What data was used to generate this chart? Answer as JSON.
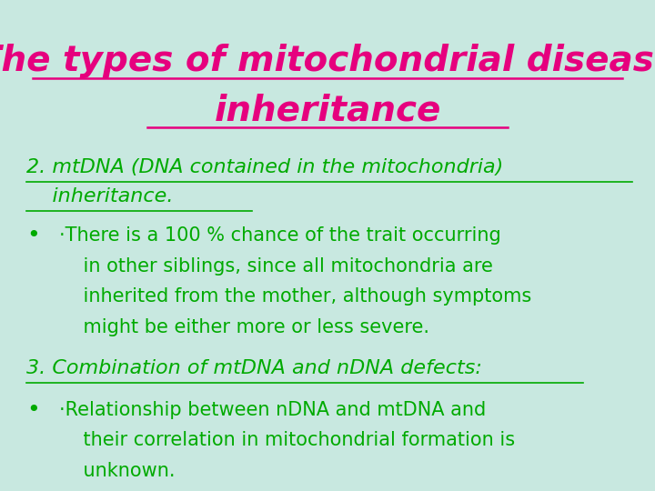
{
  "bg_color": "#c8e8e0",
  "title_line1": "The types of mitochondrial disease",
  "title_line2": "inheritance",
  "title_color": "#e6007e",
  "title_fontsize": 28,
  "heading_color": "#00aa00",
  "heading_fontsize": 16,
  "body_color": "#00aa00",
  "body_fontsize": 16,
  "heading1_line1": "2. mtDNA (DNA contained in the mitochondria)",
  "heading1_line2": "    inheritance.",
  "heading2_text": "3. Combination of mtDNA and nDNA defects:",
  "bullet1_lines": [
    "·There is a 100 % chance of the trait occurring",
    "    in other siblings, since all mitochondria are",
    "    inherited from the mother, although symptoms",
    "    might be either more or less severe."
  ],
  "bullet2_lines": [
    "·Relationship between nDNA and mtDNA and",
    "    their correlation in mitochondrial formation is",
    "    unknown."
  ]
}
